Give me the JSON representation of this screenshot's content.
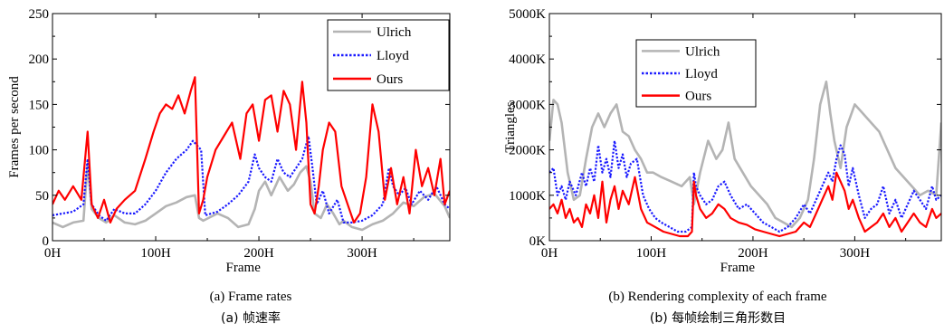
{
  "chart_data": [
    {
      "type": "line",
      "caption_en": "(a) Frame rates",
      "caption_cn": "(a)  帧速率",
      "xlabel": "Frame",
      "ylabel": "Frames per second",
      "xlim": [
        0,
        385
      ],
      "ylim": [
        0,
        250
      ],
      "xticks": [
        0,
        100,
        200,
        300
      ],
      "xtick_labels": [
        "0H",
        "100H",
        "200H",
        "300H"
      ],
      "yticks": [
        0,
        50,
        100,
        150,
        200,
        250
      ],
      "ytick_labels": [
        "0",
        "50",
        "100",
        "150",
        "200",
        "250"
      ],
      "legend_position": "top-right",
      "series": [
        {
          "name": "Ulrich",
          "color": "#b4b4b4",
          "style": "solid",
          "x": [
            0,
            10,
            20,
            30,
            34,
            38,
            45,
            52,
            60,
            70,
            80,
            90,
            100,
            110,
            120,
            130,
            138,
            142,
            146,
            160,
            170,
            180,
            190,
            196,
            200,
            206,
            212,
            216,
            220,
            228,
            234,
            240,
            246,
            250,
            254,
            260,
            266,
            272,
            278,
            282,
            290,
            300,
            310,
            320,
            330,
            340,
            350,
            360,
            370,
            380,
            385
          ],
          "y": [
            20,
            15,
            20,
            22,
            85,
            35,
            25,
            20,
            28,
            20,
            18,
            22,
            30,
            38,
            42,
            48,
            50,
            25,
            22,
            30,
            25,
            15,
            18,
            35,
            55,
            65,
            50,
            60,
            70,
            55,
            62,
            75,
            82,
            65,
            30,
            25,
            40,
            30,
            18,
            22,
            15,
            12,
            18,
            22,
            30,
            42,
            38,
            48,
            52,
            38,
            25
          ]
        },
        {
          "name": "Lloyd",
          "color": "#1a1aff",
          "style": "dotted",
          "x": [
            0,
            10,
            20,
            30,
            34,
            38,
            45,
            52,
            60,
            70,
            80,
            90,
            100,
            110,
            120,
            130,
            136,
            140,
            144,
            148,
            160,
            170,
            180,
            190,
            196,
            200,
            206,
            212,
            218,
            224,
            230,
            236,
            242,
            248,
            252,
            256,
            262,
            268,
            276,
            282,
            290,
            300,
            310,
            320,
            326,
            330,
            336,
            342,
            348,
            356,
            364,
            372,
            380,
            385
          ],
          "y": [
            28,
            30,
            32,
            40,
            90,
            40,
            28,
            22,
            35,
            30,
            30,
            40,
            55,
            75,
            90,
            100,
            110,
            105,
            100,
            28,
            32,
            40,
            50,
            65,
            95,
            80,
            70,
            65,
            90,
            75,
            70,
            80,
            90,
            115,
            80,
            40,
            55,
            30,
            45,
            20,
            20,
            22,
            28,
            40,
            80,
            60,
            50,
            58,
            40,
            55,
            45,
            60,
            40,
            35
          ]
        },
        {
          "name": "Ours",
          "color": "#ff0000",
          "style": "solid",
          "x": [
            0,
            6,
            12,
            20,
            28,
            34,
            38,
            44,
            50,
            56,
            62,
            70,
            80,
            90,
            98,
            104,
            110,
            116,
            122,
            128,
            134,
            138,
            142,
            146,
            150,
            158,
            166,
            174,
            182,
            188,
            194,
            200,
            206,
            212,
            218,
            224,
            230,
            236,
            242,
            246,
            250,
            254,
            258,
            262,
            268,
            274,
            280,
            286,
            292,
            298,
            304,
            310,
            316,
            322,
            328,
            334,
            340,
            346,
            352,
            358,
            364,
            370,
            376,
            380,
            385
          ],
          "y": [
            40,
            55,
            45,
            60,
            45,
            120,
            40,
            25,
            45,
            20,
            35,
            45,
            55,
            90,
            120,
            140,
            150,
            145,
            160,
            140,
            165,
            180,
            30,
            45,
            70,
            100,
            115,
            130,
            90,
            140,
            150,
            110,
            155,
            160,
            120,
            165,
            150,
            100,
            175,
            130,
            40,
            30,
            60,
            100,
            130,
            120,
            60,
            40,
            20,
            30,
            70,
            150,
            120,
            45,
            80,
            40,
            70,
            30,
            100,
            60,
            80,
            50,
            90,
            40,
            55
          ]
        }
      ]
    },
    {
      "type": "line",
      "caption_en": "(b) Rendering complexity of each frame",
      "caption_cn": "(b)  每帧绘制三角形数目",
      "xlabel": "Frame",
      "ylabel": "Triangles",
      "xlim": [
        0,
        385
      ],
      "ylim": [
        0,
        5000000
      ],
      "xticks": [
        0,
        100,
        200,
        300
      ],
      "xtick_labels": [
        "0H",
        "100H",
        "200H",
        "300H"
      ],
      "yticks": [
        0,
        1000000,
        2000000,
        3000000,
        4000000,
        5000000
      ],
      "ytick_labels": [
        "0K",
        "1000K",
        "2000K",
        "3000K",
        "4000K",
        "5000K"
      ],
      "legend_position": "top-left",
      "series": [
        {
          "name": "Ulrich",
          "color": "#b4b4b4",
          "style": "solid",
          "x": [
            0,
            4,
            8,
            12,
            18,
            24,
            30,
            36,
            42,
            48,
            54,
            60,
            66,
            72,
            78,
            84,
            90,
            96,
            102,
            110,
            120,
            130,
            138,
            142,
            148,
            156,
            164,
            170,
            176,
            182,
            190,
            198,
            206,
            214,
            222,
            230,
            238,
            246,
            254,
            260,
            266,
            272,
            276,
            280,
            286,
            292,
            300,
            308,
            316,
            324,
            332,
            340,
            348,
            356,
            364,
            372,
            380,
            385
          ],
          "y": [
            2200000,
            3100000,
            3000000,
            2600000,
            1500000,
            900000,
            1000000,
            1800000,
            2500000,
            2800000,
            2500000,
            2800000,
            3000000,
            2400000,
            2300000,
            2000000,
            1800000,
            1500000,
            1500000,
            1400000,
            1300000,
            1200000,
            1400000,
            800000,
            1500000,
            2200000,
            1800000,
            2000000,
            2600000,
            1800000,
            1500000,
            1200000,
            1000000,
            800000,
            500000,
            400000,
            300000,
            500000,
            900000,
            1800000,
            3000000,
            3500000,
            2800000,
            2200000,
            1600000,
            2500000,
            3000000,
            2800000,
            2600000,
            2400000,
            2000000,
            1600000,
            1400000,
            1200000,
            1000000,
            1100000,
            1000000,
            2600000
          ]
        },
        {
          "name": "Lloyd",
          "color": "#1a1aff",
          "style": "dotted",
          "x": [
            0,
            4,
            8,
            12,
            16,
            20,
            26,
            32,
            36,
            40,
            44,
            48,
            52,
            56,
            60,
            64,
            68,
            72,
            76,
            80,
            86,
            92,
            98,
            104,
            110,
            118,
            126,
            134,
            140,
            142,
            144,
            148,
            154,
            160,
            166,
            172,
            178,
            186,
            194,
            202,
            210,
            218,
            226,
            234,
            242,
            250,
            256,
            262,
            268,
            274,
            278,
            282,
            286,
            290,
            294,
            298,
            304,
            310,
            316,
            322,
            328,
            334,
            340,
            346,
            352,
            358,
            364,
            370,
            376,
            380,
            385
          ],
          "y": [
            1500000,
            1600000,
            1000000,
            1200000,
            900000,
            1300000,
            1000000,
            1500000,
            1200000,
            1600000,
            1300000,
            2100000,
            1500000,
            1800000,
            1400000,
            2200000,
            1600000,
            1900000,
            1400000,
            1700000,
            1800000,
            1000000,
            700000,
            500000,
            400000,
            300000,
            200000,
            200000,
            300000,
            1500000,
            1200000,
            1000000,
            800000,
            900000,
            1200000,
            1300000,
            1000000,
            700000,
            800000,
            600000,
            400000,
            300000,
            200000,
            300000,
            500000,
            800000,
            600000,
            900000,
            1200000,
            1500000,
            1300000,
            1800000,
            2100000,
            1900000,
            1200000,
            1600000,
            1000000,
            500000,
            700000,
            800000,
            1200000,
            600000,
            900000,
            500000,
            800000,
            1100000,
            900000,
            700000,
            1200000,
            900000,
            1000000
          ]
        },
        {
          "name": "Ours",
          "color": "#ff0000",
          "style": "solid",
          "x": [
            0,
            4,
            8,
            12,
            16,
            20,
            24,
            28,
            32,
            36,
            40,
            44,
            48,
            52,
            56,
            60,
            64,
            68,
            72,
            78,
            84,
            90,
            96,
            104,
            112,
            120,
            128,
            136,
            140,
            142,
            144,
            148,
            154,
            160,
            166,
            172,
            178,
            186,
            194,
            202,
            210,
            218,
            226,
            234,
            242,
            250,
            256,
            262,
            268,
            274,
            278,
            282,
            286,
            290,
            294,
            298,
            304,
            310,
            316,
            322,
            328,
            334,
            340,
            346,
            352,
            358,
            364,
            370,
            376,
            380,
            385
          ],
          "y": [
            700000,
            800000,
            600000,
            900000,
            500000,
            700000,
            400000,
            500000,
            300000,
            800000,
            600000,
            1000000,
            500000,
            1300000,
            400000,
            900000,
            1200000,
            700000,
            1100000,
            800000,
            1400000,
            700000,
            400000,
            300000,
            200000,
            150000,
            100000,
            100000,
            200000,
            1300000,
            1000000,
            700000,
            500000,
            600000,
            800000,
            700000,
            500000,
            400000,
            350000,
            250000,
            200000,
            150000,
            100000,
            150000,
            200000,
            400000,
            300000,
            600000,
            900000,
            1200000,
            900000,
            1500000,
            1300000,
            1100000,
            700000,
            900000,
            500000,
            200000,
            300000,
            400000,
            600000,
            300000,
            500000,
            200000,
            400000,
            600000,
            400000,
            300000,
            700000,
            500000,
            600000
          ]
        }
      ]
    }
  ]
}
